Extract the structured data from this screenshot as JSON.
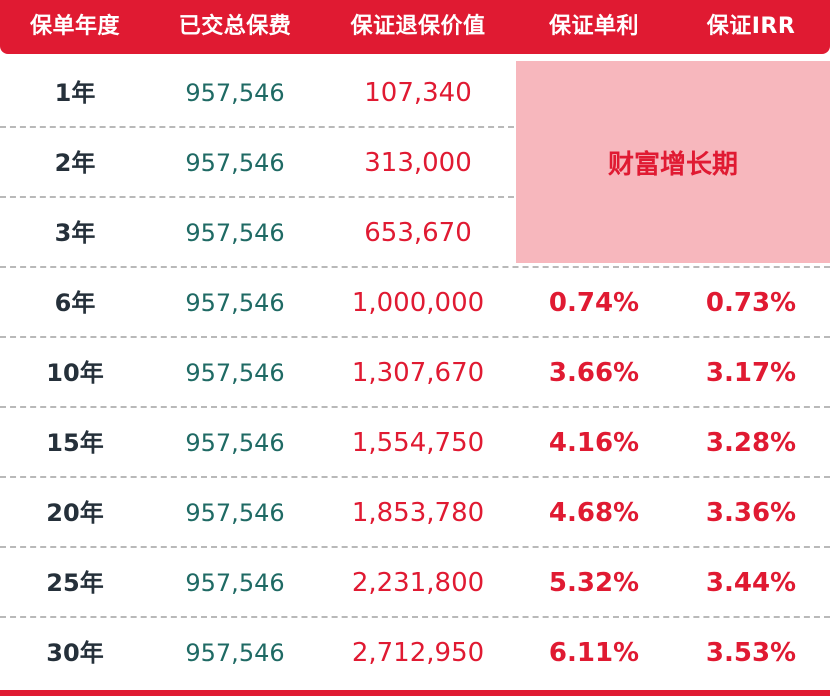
{
  "headers": [
    "保单年度",
    "已交总保费",
    "保证退保价值",
    "保证单利",
    "保证IRR"
  ],
  "wealth_label": "财富增长期",
  "colors": {
    "accent": "#e01a32",
    "highlight_bg": "#f7b7bd",
    "premium_text": "#1f6a64"
  },
  "rows": [
    {
      "year": "1年",
      "premium": "957,546",
      "value": "107,340",
      "simple": "",
      "irr": ""
    },
    {
      "year": "2年",
      "premium": "957,546",
      "value": "313,000",
      "simple": "",
      "irr": ""
    },
    {
      "year": "3年",
      "premium": "957,546",
      "value": "653,670",
      "simple": "",
      "irr": ""
    },
    {
      "year": "6年",
      "premium": "957,546",
      "value": "1,000,000",
      "simple": "0.74%",
      "irr": "0.73%"
    },
    {
      "year": "10年",
      "premium": "957,546",
      "value": "1,307,670",
      "simple": "3.66%",
      "irr": "3.17%"
    },
    {
      "year": "15年",
      "premium": "957,546",
      "value": "1,554,750",
      "simple": "4.16%",
      "irr": "3.28%"
    },
    {
      "year": "20年",
      "premium": "957,546",
      "value": "1,853,780",
      "simple": "4.68%",
      "irr": "3.36%"
    },
    {
      "year": "25年",
      "premium": "957,546",
      "value": "2,231,800",
      "simple": "5.32%",
      "irr": "3.44%"
    },
    {
      "year": "30年",
      "premium": "957,546",
      "value": "2,712,950",
      "simple": "6.11%",
      "irr": "3.53%"
    }
  ]
}
